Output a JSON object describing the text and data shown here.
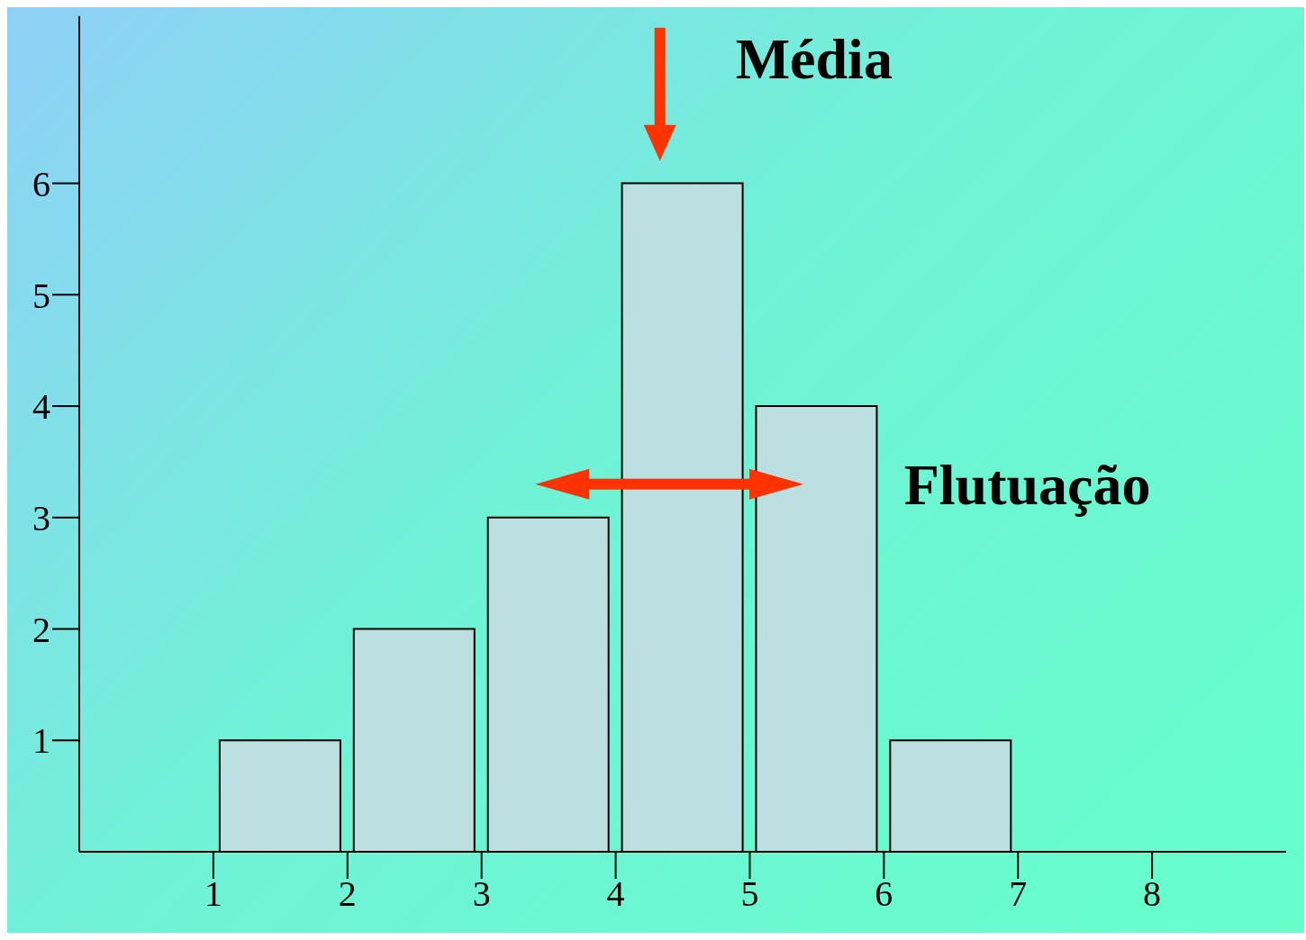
{
  "chart_data": {
    "type": "histogram",
    "bins": [
      1,
      2,
      3,
      4,
      5,
      6,
      7
    ],
    "values": [
      1,
      2,
      3,
      6,
      4,
      1
    ],
    "color": "#bce0e2",
    "xlim": [
      0,
      9
    ],
    "ylim": [
      0,
      7.5
    ],
    "xticks": [
      1,
      2,
      3,
      4,
      5,
      6,
      7,
      8
    ],
    "yticks": [
      1,
      2,
      3,
      4,
      5,
      6
    ],
    "grid": false,
    "annotations": [
      "Média",
      "Flutuação"
    ]
  }
}
